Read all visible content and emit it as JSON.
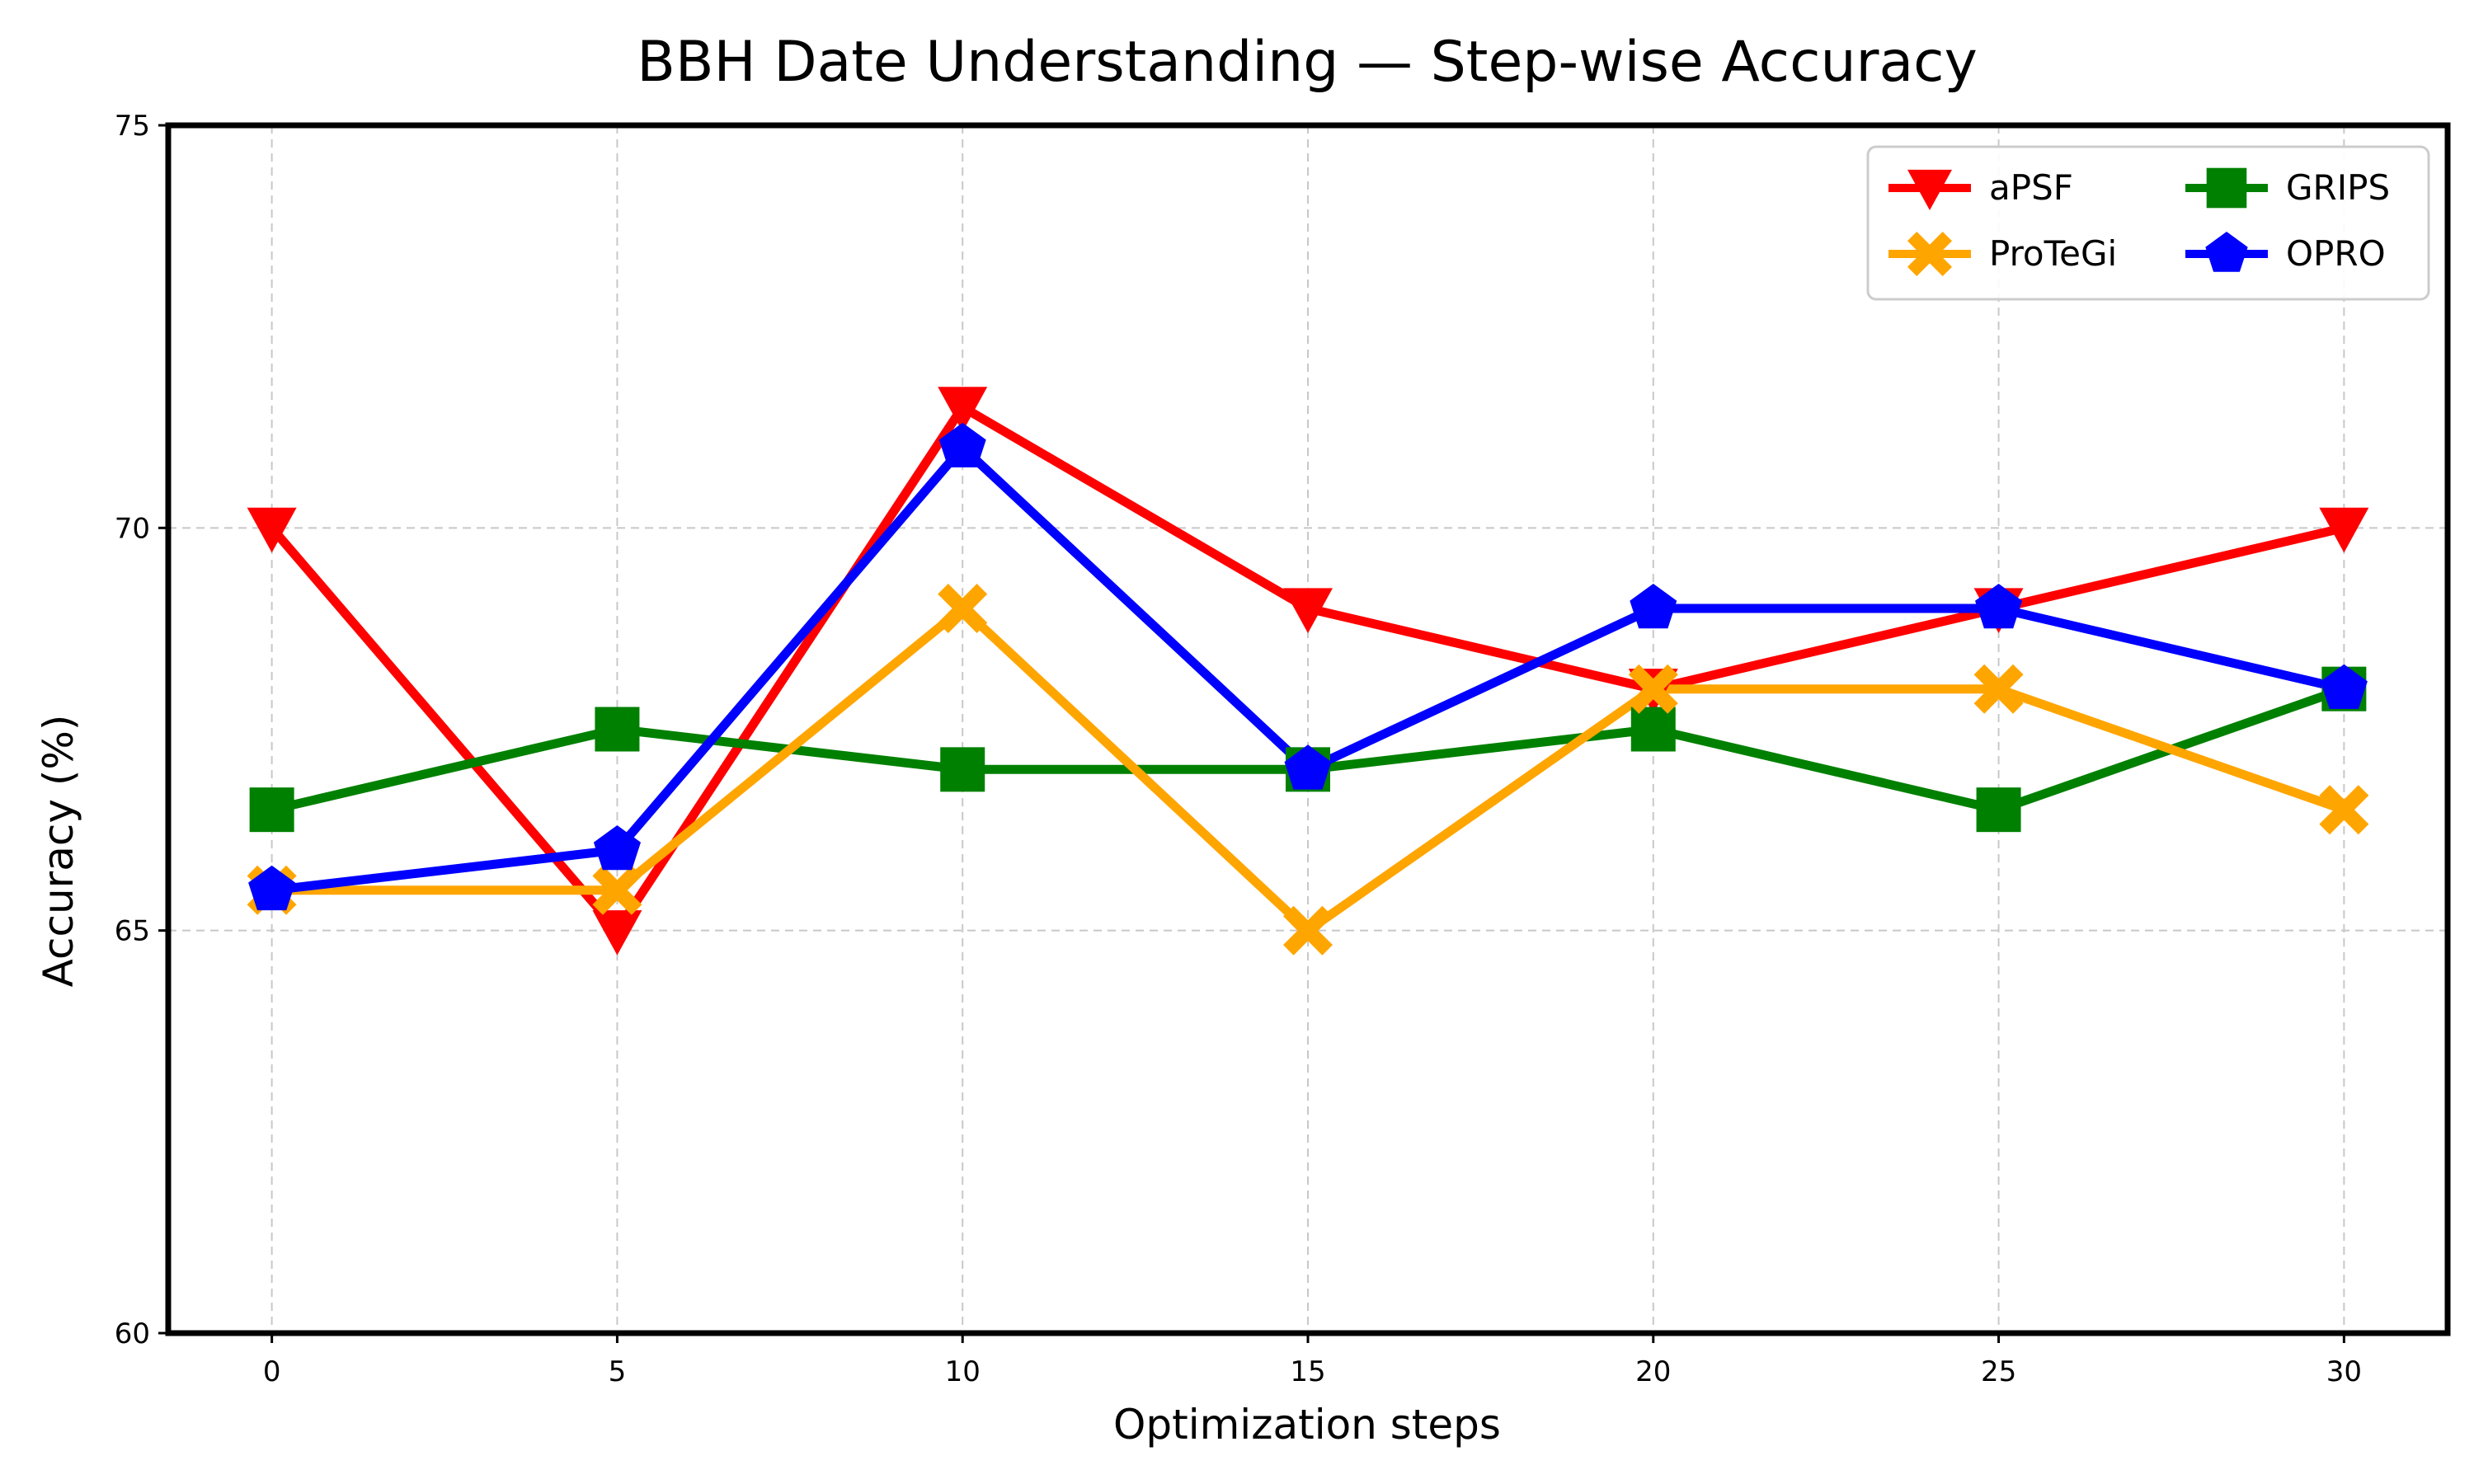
{
  "chart_data": {
    "type": "line",
    "title": "BBH Date Understanding — Step-wise Accuracy",
    "xlabel": "Optimization steps",
    "ylabel": "Accuracy (%)",
    "x": [
      0,
      5,
      10,
      15,
      20,
      25,
      30
    ],
    "xticks": [
      "0",
      "5",
      "10",
      "15",
      "20",
      "25",
      "30"
    ],
    "yticks": [
      "60",
      "65",
      "70",
      "75"
    ],
    "xlim": [
      -1.5,
      31.5
    ],
    "ylim": [
      60,
      75
    ],
    "grid": true,
    "legend_position": "top-right",
    "series": [
      {
        "name": "aPSF",
        "color": "#ff0000",
        "marker": "triangle-down",
        "values": [
          70,
          65,
          71.5,
          69,
          68,
          69,
          70
        ]
      },
      {
        "name": "GRIPS",
        "color": "#008000",
        "marker": "square",
        "values": [
          66.5,
          67.5,
          67,
          67,
          67.5,
          66.5,
          68
        ]
      },
      {
        "name": "ProTeGi",
        "color": "#ffa500",
        "marker": "x-filled",
        "values": [
          65.5,
          65.5,
          69,
          65,
          68,
          68,
          66.5
        ]
      },
      {
        "name": "OPRO",
        "color": "#0000ff",
        "marker": "pentagon",
        "values": [
          65.5,
          66,
          71,
          67,
          69,
          69,
          68
        ]
      }
    ]
  }
}
